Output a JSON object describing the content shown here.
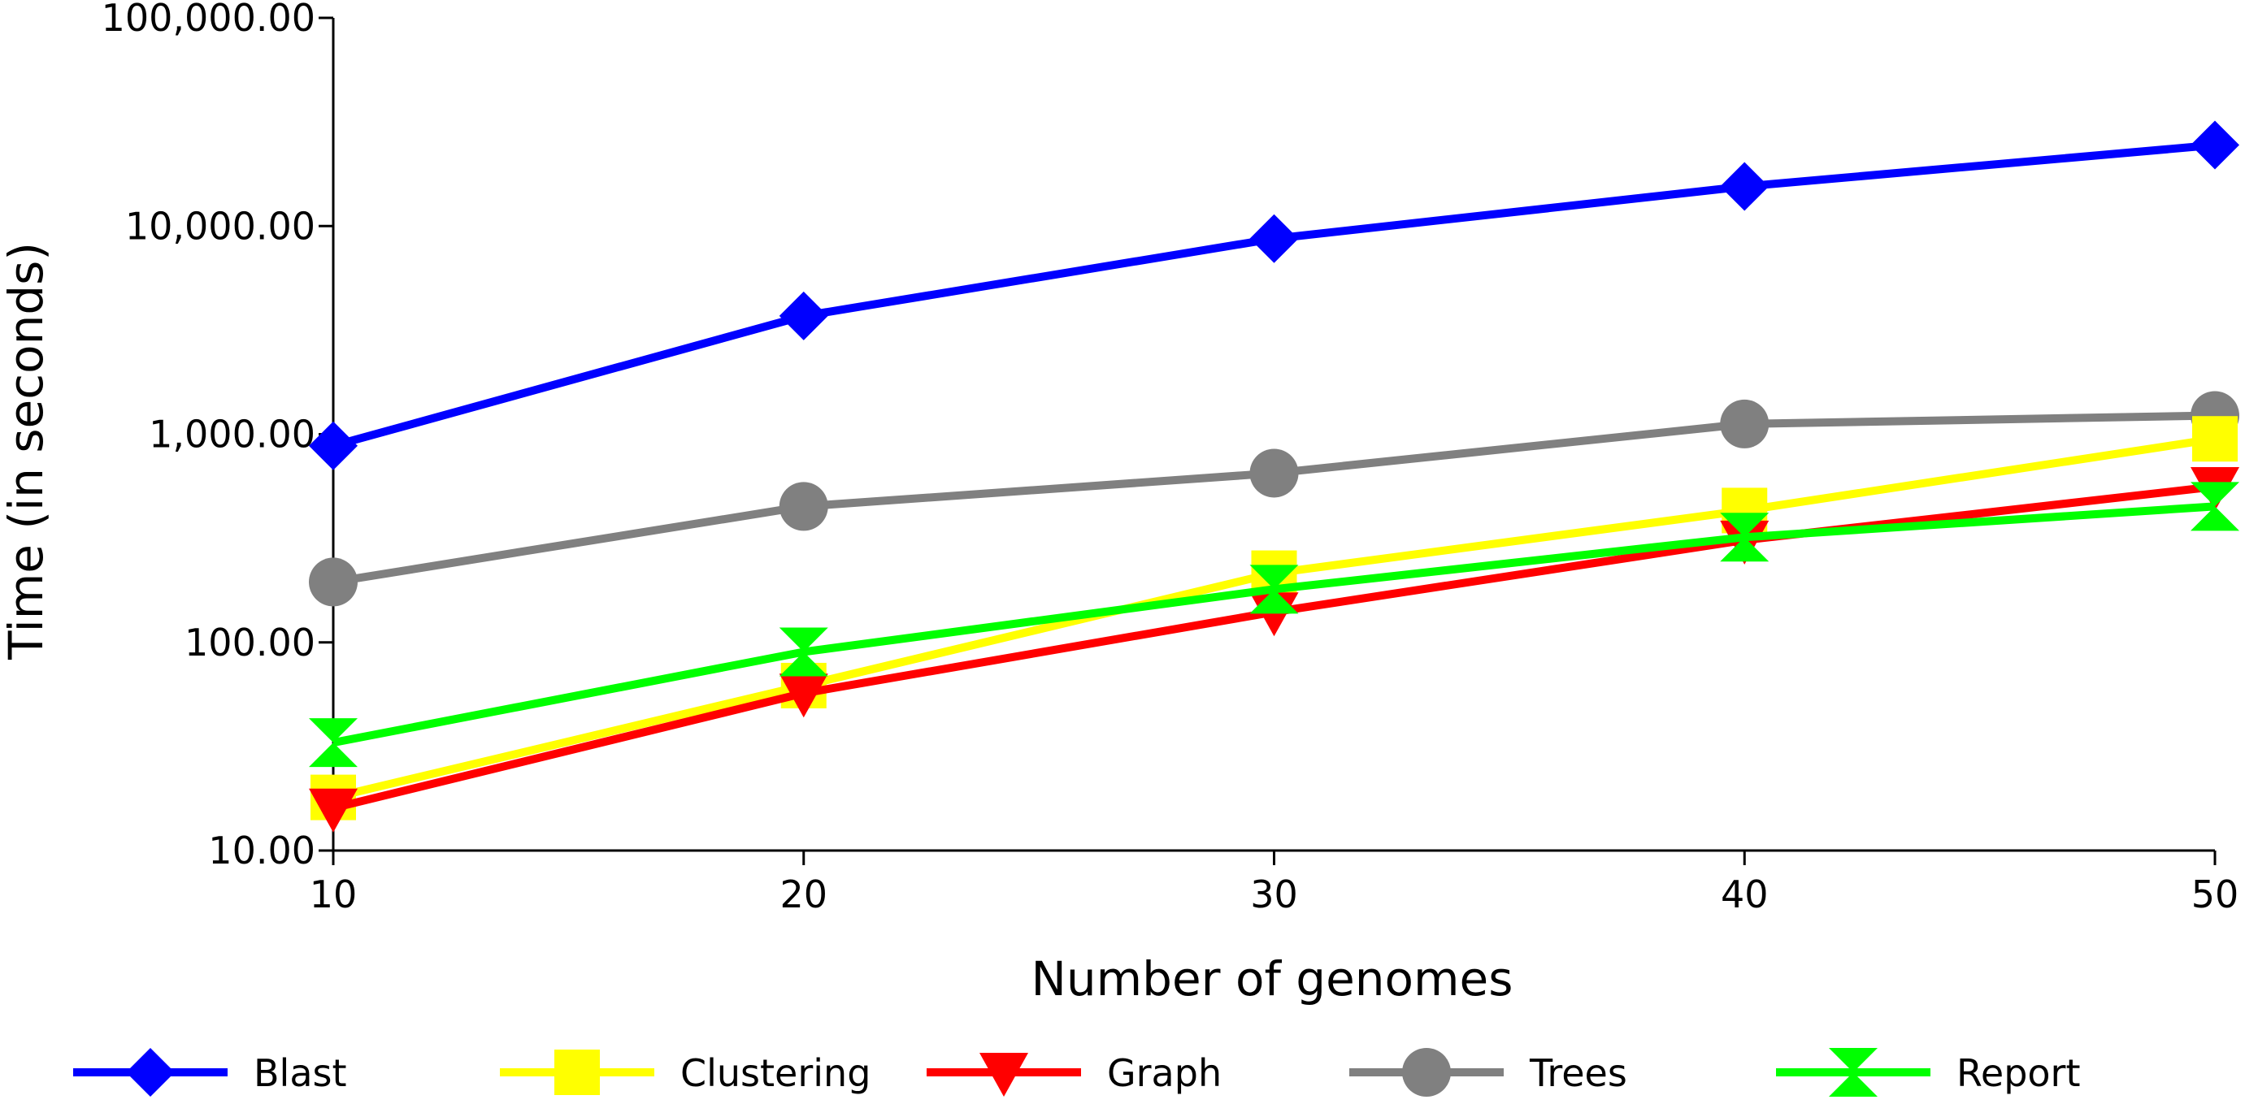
{
  "chart_data": {
    "type": "line",
    "title": "",
    "xlabel": "Number of genomes",
    "ylabel": "Time (in seconds)",
    "y_scale": "log",
    "xlim": [
      10,
      50
    ],
    "ylim": [
      10,
      100000
    ],
    "x": [
      10,
      20,
      30,
      40,
      50
    ],
    "x_tick_labels": [
      "10",
      "20",
      "30",
      "40",
      "50"
    ],
    "y_ticks": [
      10,
      100,
      1000,
      10000,
      100000
    ],
    "y_tick_labels": [
      "10.00",
      "100.00",
      "1,000.00",
      "10,000.00",
      "100,000.00"
    ],
    "legend_position": "bottom",
    "series": [
      {
        "name": "Blast",
        "color": "#0000ff",
        "marker": "diamond",
        "values": [
          880,
          3700,
          8700,
          15500,
          24500
        ]
      },
      {
        "name": "Clustering",
        "color": "#ffff00",
        "marker": "square",
        "values": [
          18,
          62,
          215,
          430,
          950
        ]
      },
      {
        "name": "Graph",
        "color": "#ff0000",
        "marker": "triangle-down",
        "values": [
          16,
          57,
          140,
          310,
          560
        ]
      },
      {
        "name": "Trees",
        "color": "#808080",
        "marker": "circle",
        "values": [
          195,
          450,
          650,
          1120,
          1230
        ]
      },
      {
        "name": "Report",
        "color": "#00ff00",
        "marker": "hourglass",
        "values": [
          33,
          90,
          180,
          320,
          450
        ]
      }
    ]
  }
}
